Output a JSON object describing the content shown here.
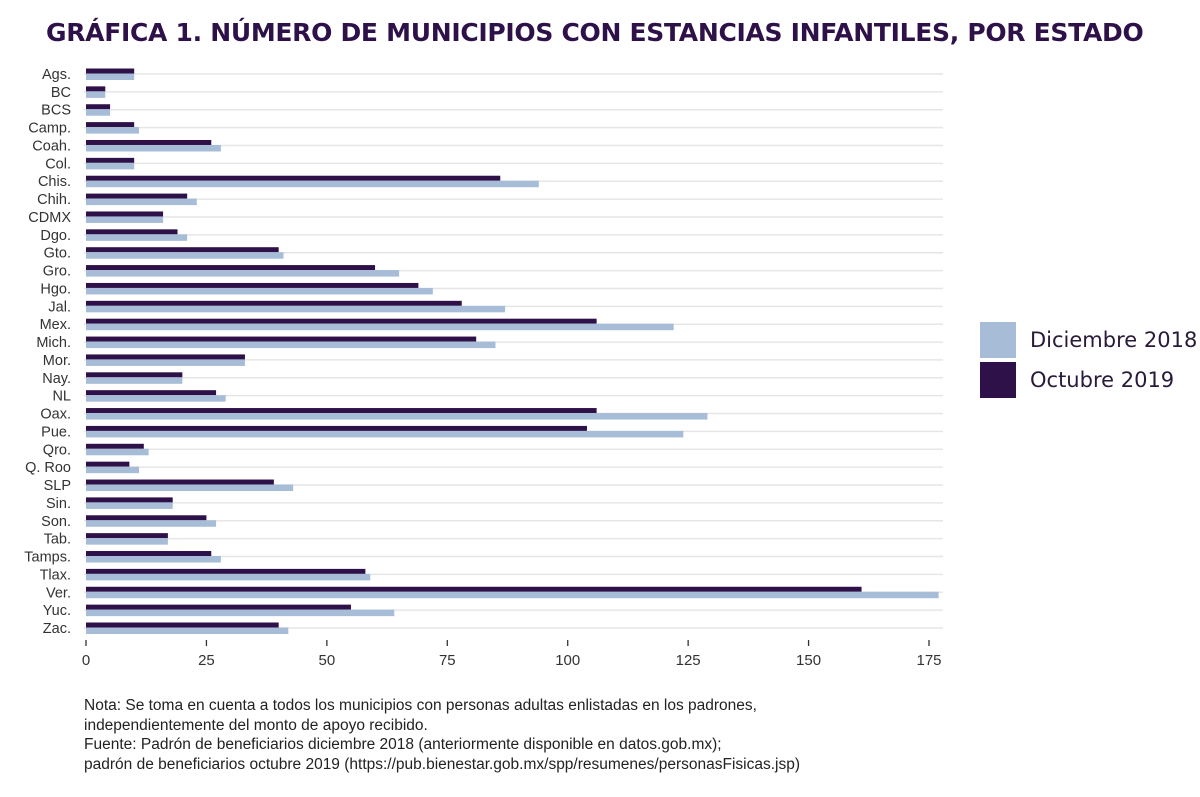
{
  "chart_data": {
    "type": "bar",
    "orientation": "horizontal",
    "title": "GRÁFICA 1. NÚMERO DE MUNICIPIOS CON ESTANCIAS INFANTILES, POR ESTADO",
    "xlabel": "",
    "ylabel": "",
    "xlim": [
      0,
      178
    ],
    "xticks": [
      0,
      25,
      50,
      75,
      100,
      125,
      150,
      175
    ],
    "grid": true,
    "legend_position": "right",
    "categories": [
      "Ags.",
      "BC",
      "BCS",
      "Camp.",
      "Coah.",
      "Col.",
      "Chis.",
      "Chih.",
      "CDMX",
      "Dgo.",
      "Gto.",
      "Gro.",
      "Hgo.",
      "Jal.",
      "Mex.",
      "Mich.",
      "Mor.",
      "Nay.",
      "NL",
      "Oax.",
      "Pue.",
      "Qro.",
      "Q. Roo",
      "SLP",
      "Sin.",
      "Son.",
      "Tab.",
      "Tamps.",
      "Tlax.",
      "Ver.",
      "Yuc.",
      "Zac."
    ],
    "series": [
      {
        "name": "Diciembre 2018",
        "color": "#a7bcd7",
        "values": [
          10,
          4,
          5,
          11,
          28,
          10,
          94,
          23,
          16,
          21,
          41,
          65,
          72,
          87,
          122,
          85,
          33,
          20,
          29,
          129,
          124,
          13,
          11,
          43,
          18,
          27,
          17,
          28,
          59,
          177,
          64,
          42
        ]
      },
      {
        "name": "Octubre 2019",
        "color": "#2e1148",
        "values": [
          10,
          4,
          5,
          10,
          26,
          10,
          86,
          21,
          16,
          19,
          40,
          60,
          69,
          78,
          106,
          81,
          33,
          20,
          27,
          106,
          104,
          12,
          9,
          39,
          18,
          25,
          17,
          26,
          58,
          161,
          55,
          40
        ]
      }
    ]
  },
  "legend": {
    "items": [
      {
        "label": "Diciembre 2018",
        "color": "#a7bcd7"
      },
      {
        "label": "Octubre 2019",
        "color": "#2e1148"
      }
    ]
  },
  "notes": {
    "line1": "Nota: Se toma en cuenta a todos los municipios con personas adultas enlistadas en los padrones,",
    "line2": "independientemente del monto de apoyo recibido.",
    "line3": "Fuente: Padrón de beneficiarios diciembre 2018 (anteriormente disponible en datos.gob.mx);",
    "line4": "padrón de beneficiarios octubre 2019 (https://pub.bienestar.gob.mx/spp/resumenes/personasFisicas.jsp)"
  }
}
